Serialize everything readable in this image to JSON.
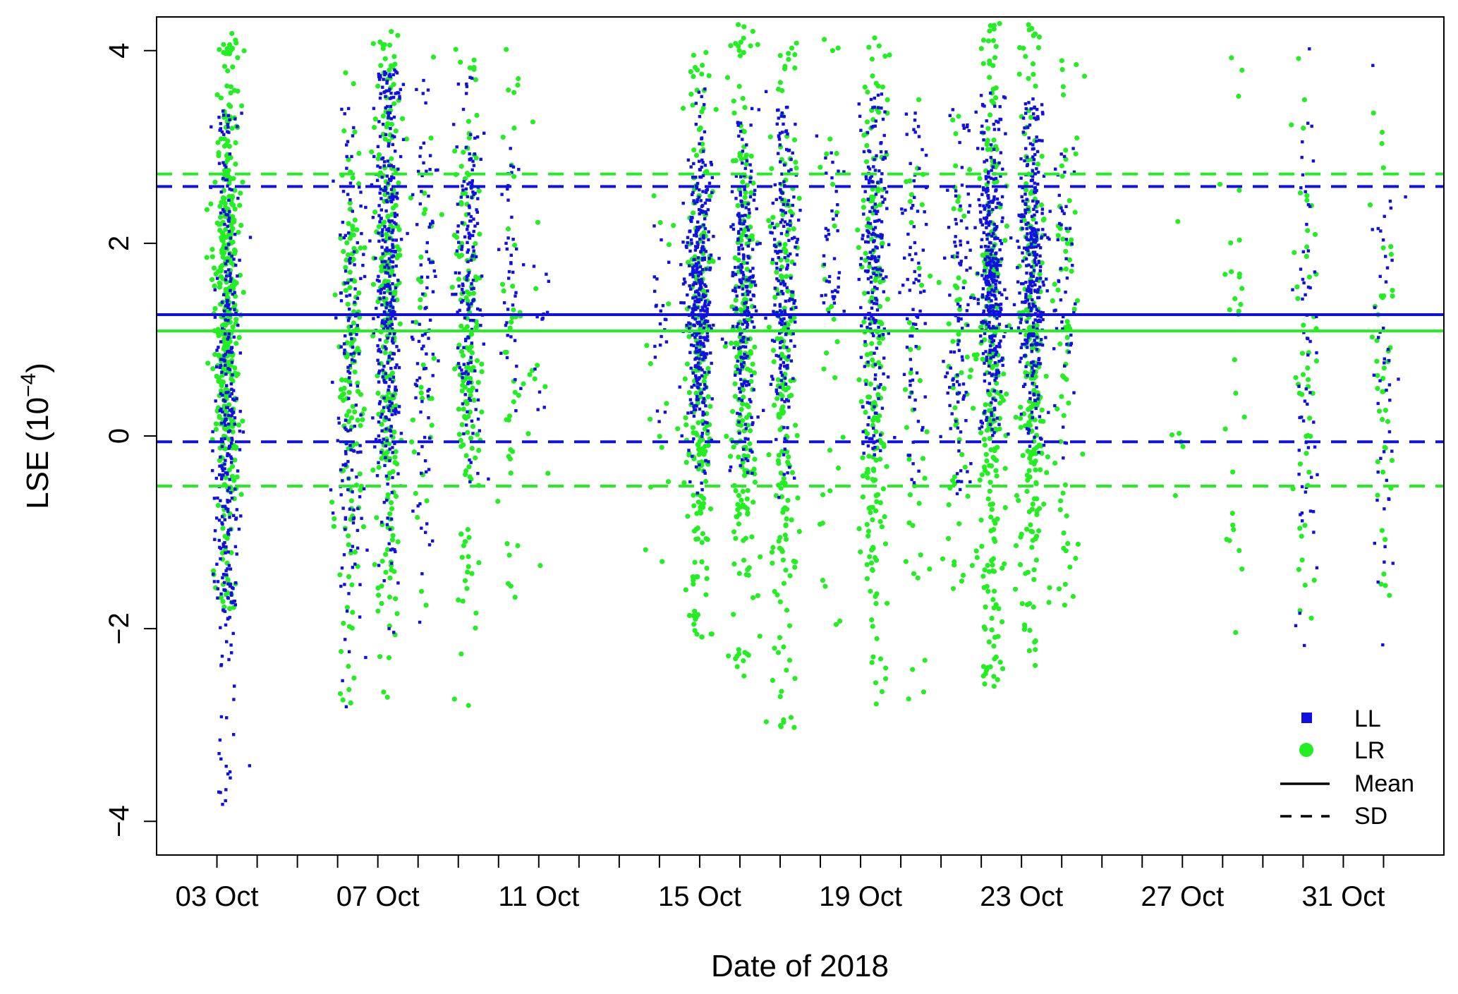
{
  "chart_data": {
    "type": "scatter",
    "xlabel": "Date of 2018",
    "ylabel_base": "LSE (10",
    "ylabel_exp": "−4",
    "ylabel_close": ")",
    "x_range": [
      "2018-10-01T12:00",
      "2018-11-02T12:00"
    ],
    "ylim": [
      -4.35,
      4.35
    ],
    "y_ticks": [
      -4,
      -2,
      0,
      2,
      4
    ],
    "y_tick_labels": [
      "−4",
      "−2",
      "0",
      "2",
      "4"
    ],
    "x_minor_ticks": [
      "2018-10-03",
      "2018-10-04",
      "2018-10-05",
      "2018-10-06",
      "2018-10-07",
      "2018-10-08",
      "2018-10-09",
      "2018-10-10",
      "2018-10-11",
      "2018-10-12",
      "2018-10-13",
      "2018-10-14",
      "2018-10-15",
      "2018-10-16",
      "2018-10-17",
      "2018-10-18",
      "2018-10-19",
      "2018-10-20",
      "2018-10-21",
      "2018-10-22",
      "2018-10-23",
      "2018-10-24",
      "2018-10-25",
      "2018-10-26",
      "2018-10-27",
      "2018-10-28",
      "2018-10-29",
      "2018-10-30",
      "2018-10-31",
      "2018-11-01"
    ],
    "x_major_ticks": [
      {
        "date": "2018-10-03",
        "label": "03  Oct"
      },
      {
        "date": "2018-10-07",
        "label": "07  Oct"
      },
      {
        "date": "2018-10-11",
        "label": "11  Oct"
      },
      {
        "date": "2018-10-15",
        "label": "15  Oct"
      },
      {
        "date": "2018-10-19",
        "label": "19  Oct"
      },
      {
        "date": "2018-10-23",
        "label": "23  Oct"
      },
      {
        "date": "2018-10-27",
        "label": "27  Oct"
      },
      {
        "date": "2018-10-31",
        "label": "31  Oct"
      }
    ],
    "colors": {
      "LL": "#1010e0",
      "LR": "#22ee22"
    },
    "series": [
      {
        "name": "LL",
        "marker": "square",
        "mean": 1.26,
        "sd_lines": [
          2.59,
          -0.06
        ],
        "clusters": [
          {
            "date": "2018-10-03T06:00",
            "center": 0.2,
            "spread": 1.8,
            "lo": -3.95,
            "hi": 3.4,
            "n": 320
          },
          {
            "date": "2018-10-06T08:00",
            "center": 0.6,
            "spread": 1.6,
            "lo": -3.15,
            "hi": 3.5,
            "n": 150
          },
          {
            "date": "2018-10-07T06:00",
            "center": 1.6,
            "spread": 1.4,
            "lo": -2.5,
            "hi": 3.8,
            "n": 350
          },
          {
            "date": "2018-10-08T04:00",
            "center": 1.2,
            "spread": 1.3,
            "lo": -2.2,
            "hi": 3.8,
            "n": 90
          },
          {
            "date": "2018-10-09T06:00",
            "center": 1.8,
            "spread": 1.0,
            "lo": -0.5,
            "hi": 3.8,
            "n": 160
          },
          {
            "date": "2018-10-10T08:00",
            "center": 1.6,
            "spread": 0.8,
            "lo": 0.2,
            "hi": 3.0,
            "n": 40
          },
          {
            "date": "2018-10-11T00:00",
            "center": 1.5,
            "spread": 0.6,
            "lo": 0.2,
            "hi": 2.6,
            "n": 12
          },
          {
            "date": "2018-10-14T00:00",
            "center": 1.2,
            "spread": 0.9,
            "lo": -0.1,
            "hi": 2.2,
            "n": 22
          },
          {
            "date": "2018-10-15T00:00",
            "center": 1.4,
            "spread": 0.9,
            "lo": -0.6,
            "hi": 3.7,
            "n": 380
          },
          {
            "date": "2018-10-16T02:00",
            "center": 1.5,
            "spread": 0.9,
            "lo": -0.4,
            "hi": 3.4,
            "n": 220
          },
          {
            "date": "2018-10-17T02:00",
            "center": 1.6,
            "spread": 1.0,
            "lo": -1.9,
            "hi": 3.6,
            "n": 200
          },
          {
            "date": "2018-10-18T06:00",
            "center": 2.0,
            "spread": 0.8,
            "lo": 1.2,
            "hi": 3.6,
            "n": 40
          },
          {
            "date": "2018-10-19T08:00",
            "center": 1.8,
            "spread": 1.0,
            "lo": -0.2,
            "hi": 3.6,
            "n": 210
          },
          {
            "date": "2018-10-20T08:00",
            "center": 1.4,
            "spread": 1.1,
            "lo": -0.6,
            "hi": 3.4,
            "n": 80
          },
          {
            "date": "2018-10-21T10:00",
            "center": 1.2,
            "spread": 1.1,
            "lo": -0.6,
            "hi": 3.4,
            "n": 100
          },
          {
            "date": "2018-10-22T06:00",
            "center": 1.7,
            "spread": 0.9,
            "lo": 0.0,
            "hi": 3.6,
            "n": 350
          },
          {
            "date": "2018-10-23T06:00",
            "center": 1.7,
            "spread": 0.9,
            "lo": -0.2,
            "hi": 3.5,
            "n": 330
          },
          {
            "date": "2018-10-24T02:00",
            "center": 1.6,
            "spread": 1.0,
            "lo": -0.3,
            "hi": 3.0,
            "n": 50
          },
          {
            "date": "2018-10-30T02:00",
            "center": 1.0,
            "spread": 1.5,
            "lo": -2.2,
            "hi": 4.3,
            "n": 60
          },
          {
            "date": "2018-11-01T00:00",
            "center": 0.8,
            "spread": 1.5,
            "lo": -2.45,
            "hi": 4.3,
            "n": 45
          }
        ]
      },
      {
        "name": "LR",
        "marker": "circle",
        "mean": 1.09,
        "sd_lines": [
          2.72,
          -0.52
        ],
        "clusters": [
          {
            "date": "2018-10-03T06:00",
            "center": 1.2,
            "spread": 1.5,
            "lo": -1.8,
            "hi": 4.2,
            "n": 400
          },
          {
            "date": "2018-10-06T08:00",
            "center": 0.6,
            "spread": 1.6,
            "lo": -2.95,
            "hi": 4.3,
            "n": 150
          },
          {
            "date": "2018-10-07T06:00",
            "center": 1.2,
            "spread": 1.6,
            "lo": -2.8,
            "hi": 4.2,
            "n": 260
          },
          {
            "date": "2018-10-08T04:00",
            "center": 1.0,
            "spread": 1.4,
            "lo": -1.9,
            "hi": 4.2,
            "n": 35
          },
          {
            "date": "2018-10-09T06:00",
            "center": 1.0,
            "spread": 1.6,
            "lo": -2.8,
            "hi": 4.1,
            "n": 160
          },
          {
            "date": "2018-10-10T08:00",
            "center": 0.9,
            "spread": 1.6,
            "lo": -1.8,
            "hi": 4.3,
            "n": 45
          },
          {
            "date": "2018-10-11T00:00",
            "center": 0.8,
            "spread": 1.4,
            "lo": -1.4,
            "hi": 3.0,
            "n": 10
          },
          {
            "date": "2018-10-14T00:00",
            "center": 0.5,
            "spread": 1.2,
            "lo": -1.4,
            "hi": 2.5,
            "n": 15
          },
          {
            "date": "2018-10-15T00:00",
            "center": 0.8,
            "spread": 1.6,
            "lo": -2.1,
            "hi": 4.0,
            "n": 230
          },
          {
            "date": "2018-10-16T02:00",
            "center": 0.9,
            "spread": 1.7,
            "lo": -2.5,
            "hi": 4.3,
            "n": 230
          },
          {
            "date": "2018-10-17T02:00",
            "center": 0.8,
            "spread": 1.7,
            "lo": -3.05,
            "hi": 4.1,
            "n": 200
          },
          {
            "date": "2018-10-18T06:00",
            "center": 1.0,
            "spread": 1.6,
            "lo": -2.0,
            "hi": 4.3,
            "n": 30
          },
          {
            "date": "2018-10-19T08:00",
            "center": 0.7,
            "spread": 1.8,
            "lo": -2.8,
            "hi": 4.2,
            "n": 200
          },
          {
            "date": "2018-10-20T08:00",
            "center": 0.6,
            "spread": 1.6,
            "lo": -2.8,
            "hi": 3.7,
            "n": 40
          },
          {
            "date": "2018-10-21T10:00",
            "center": 0.8,
            "spread": 1.5,
            "lo": -1.6,
            "hi": 4.2,
            "n": 60
          },
          {
            "date": "2018-10-22T06:00",
            "center": 0.8,
            "spread": 1.8,
            "lo": -2.6,
            "hi": 4.3,
            "n": 250
          },
          {
            "date": "2018-10-23T06:00",
            "center": 0.9,
            "spread": 1.7,
            "lo": -2.4,
            "hi": 4.3,
            "n": 230
          },
          {
            "date": "2018-10-24T02:00",
            "center": 0.9,
            "spread": 1.6,
            "lo": -1.9,
            "hi": 3.9,
            "n": 70
          },
          {
            "date": "2018-10-26T22:00",
            "center": 0.5,
            "spread": 1.4,
            "lo": -1.3,
            "hi": 2.9,
            "n": 6
          },
          {
            "date": "2018-10-28T08:00",
            "center": 0.6,
            "spread": 1.7,
            "lo": -2.1,
            "hi": 4.0,
            "n": 30
          },
          {
            "date": "2018-10-30T02:00",
            "center": 1.0,
            "spread": 1.6,
            "lo": -1.9,
            "hi": 4.2,
            "n": 50
          },
          {
            "date": "2018-11-01T00:00",
            "center": 1.0,
            "spread": 1.6,
            "lo": -1.9,
            "hi": 4.3,
            "n": 45
          }
        ]
      }
    ],
    "legend": {
      "placement": "bottom-right",
      "entries": [
        {
          "label": "LL",
          "symbol": "square"
        },
        {
          "label": "LR",
          "symbol": "circle"
        },
        {
          "label": "Mean",
          "symbol": "solid-line"
        },
        {
          "label": "SD",
          "symbol": "dashed-line"
        }
      ]
    },
    "grid": false
  }
}
